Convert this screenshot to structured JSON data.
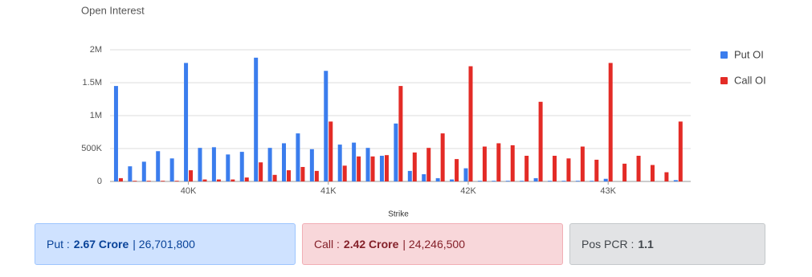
{
  "chart_data": {
    "type": "bar",
    "title": "Open Interest",
    "x_label": "Strike",
    "x": [
      39500,
      39600,
      39700,
      39800,
      39900,
      40000,
      40100,
      40200,
      40300,
      40400,
      40500,
      40600,
      40700,
      40800,
      40900,
      41000,
      41100,
      41200,
      41300,
      41400,
      41500,
      41600,
      41700,
      41800,
      41900,
      42000,
      42100,
      42200,
      42300,
      42400,
      42500,
      42600,
      42700,
      42800,
      42900,
      43000,
      43100,
      43200,
      43300,
      43400,
      43500
    ],
    "series": [
      {
        "name": "Put OI",
        "color": "#3b7ded",
        "values": [
          1450000,
          230000,
          300000,
          460000,
          350000,
          1800000,
          510000,
          520000,
          410000,
          450000,
          1880000,
          510000,
          580000,
          730000,
          490000,
          1680000,
          560000,
          590000,
          510000,
          390000,
          880000,
          160000,
          110000,
          50000,
          30000,
          200000,
          10000,
          10000,
          10000,
          10000,
          50000,
          10000,
          10000,
          10000,
          10000,
          40000,
          0,
          0,
          0,
          0,
          20000
        ]
      },
      {
        "name": "Call OI",
        "color": "#e32b26",
        "values": [
          50000,
          10000,
          10000,
          10000,
          10000,
          170000,
          30000,
          30000,
          30000,
          60000,
          290000,
          100000,
          170000,
          220000,
          160000,
          910000,
          240000,
          380000,
          380000,
          400000,
          1450000,
          440000,
          510000,
          730000,
          340000,
          1750000,
          530000,
          580000,
          550000,
          390000,
          1210000,
          390000,
          350000,
          530000,
          330000,
          1800000,
          270000,
          390000,
          250000,
          140000,
          910000
        ]
      }
    ],
    "xlim": [
      39440,
      43590
    ],
    "xticks": [
      {
        "value": 40000,
        "label": "40K"
      },
      {
        "value": 41000,
        "label": "41K"
      },
      {
        "value": 42000,
        "label": "42K"
      },
      {
        "value": 43000,
        "label": "43K"
      }
    ],
    "ylim": [
      0,
      2000000
    ],
    "yticks": [
      0,
      {
        "value": 500000,
        "label": "500K"
      },
      {
        "value": 1000000,
        "label": "1M"
      },
      {
        "value": 1500000,
        "label": "1.5M"
      },
      {
        "value": 2000000,
        "label": "2M"
      }
    ],
    "grid": true,
    "legend": "right"
  },
  "summary": [
    {
      "label": "Put :",
      "value": "2.67 Crore",
      "detail": "| 26,701,800"
    },
    {
      "label": "Call :",
      "value": "2.42 Crore",
      "detail": "| 24,246,500"
    },
    {
      "label": "Pos PCR :",
      "value": "1.1"
    }
  ]
}
